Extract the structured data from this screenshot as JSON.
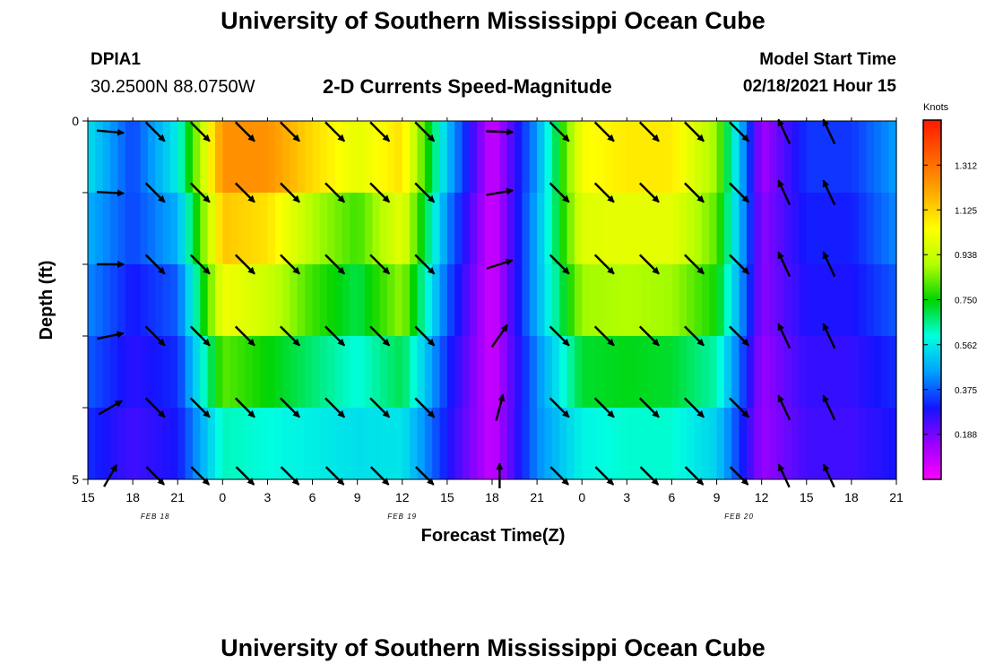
{
  "header": {
    "title": "University of Southern Mississippi Ocean Cube",
    "station_id": "DPIA1",
    "coordinates": "30.2500N 88.0750W",
    "subtitle": "2-D Currents Speed-Magnitude",
    "model_start_label": "Model Start Time",
    "model_start_value": "02/18/2021 Hour 15"
  },
  "footer": {
    "title": "University of Southern Mississippi Ocean Cube"
  },
  "chart_data": {
    "type": "heatmap",
    "title": "2-D Currents Speed-Magnitude",
    "xlabel": "Forecast Time(Z)",
    "ylabel": "Depth (ft)",
    "x_range_hours": [
      0,
      54
    ],
    "y_range_ft": [
      0,
      5
    ],
    "y_tick_labels": [
      {
        "depth": 0,
        "label": "0"
      },
      {
        "depth": 5,
        "label": "5"
      }
    ],
    "y_minor_ticks": [
      1,
      2,
      3,
      4
    ],
    "x_ticks": [
      {
        "hour": 0,
        "label": "15"
      },
      {
        "hour": 3,
        "label": "18"
      },
      {
        "hour": 6,
        "label": "21"
      },
      {
        "hour": 9,
        "label": "0"
      },
      {
        "hour": 12,
        "label": "3"
      },
      {
        "hour": 15,
        "label": "6"
      },
      {
        "hour": 18,
        "label": "9"
      },
      {
        "hour": 21,
        "label": "12"
      },
      {
        "hour": 24,
        "label": "15"
      },
      {
        "hour": 27,
        "label": "18"
      },
      {
        "hour": 30,
        "label": "21"
      },
      {
        "hour": 33,
        "label": "0"
      },
      {
        "hour": 36,
        "label": "3"
      },
      {
        "hour": 39,
        "label": "6"
      },
      {
        "hour": 42,
        "label": "9"
      },
      {
        "hour": 45,
        "label": "12"
      },
      {
        "hour": 48,
        "label": "15"
      },
      {
        "hour": 51,
        "label": "18"
      },
      {
        "hour": 54,
        "label": "21"
      }
    ],
    "date_labels": [
      {
        "hour": 4.5,
        "label": "FEB 18"
      },
      {
        "hour": 21,
        "label": "FEB 19"
      },
      {
        "hour": 43.5,
        "label": "FEB 20"
      }
    ],
    "depth_layers": 5,
    "hours_sampled": [
      0,
      3,
      6,
      9,
      12,
      15,
      18,
      21,
      24,
      27,
      30,
      33,
      36,
      39,
      42,
      45,
      48,
      51,
      54
    ],
    "speed_knots": [
      [
        0.6,
        0.3,
        0.6,
        1.3,
        1.35,
        1.28,
        1.15,
        1.15,
        0.55,
        0.08,
        0.45,
        1.05,
        1.12,
        1.12,
        0.9,
        0.12,
        0.35,
        0.35,
        0.45
      ],
      [
        0.5,
        0.4,
        0.55,
        1.2,
        1.15,
        0.95,
        0.85,
        1.05,
        0.45,
        0.06,
        0.45,
        1.02,
        1.05,
        1.05,
        0.85,
        0.15,
        0.32,
        0.32,
        0.45
      ],
      [
        0.45,
        0.3,
        0.4,
        1.1,
        1.05,
        0.85,
        0.75,
        0.95,
        0.4,
        0.06,
        0.5,
        0.95,
        0.95,
        0.95,
        0.8,
        0.18,
        0.3,
        0.3,
        0.4
      ],
      [
        0.4,
        0.3,
        0.35,
        0.95,
        0.85,
        0.75,
        0.65,
        0.8,
        0.35,
        0.06,
        0.45,
        0.82,
        0.85,
        0.82,
        0.72,
        0.15,
        0.28,
        0.28,
        0.35
      ],
      [
        0.35,
        0.25,
        0.3,
        0.7,
        0.65,
        0.6,
        0.55,
        0.6,
        0.3,
        0.08,
        0.4,
        0.62,
        0.62,
        0.62,
        0.55,
        0.15,
        0.25,
        0.25,
        0.3
      ],
      [
        0.3,
        0.25,
        0.3,
        0.55,
        0.55,
        0.55,
        0.55,
        0.52,
        0.3,
        0.08,
        0.45,
        0.55,
        0.6,
        0.6,
        0.5,
        0.15,
        0.25,
        0.25,
        0.3
      ]
    ],
    "vector_columns_hours": [
      1.5,
      4.5,
      7.5,
      10.5,
      13.5,
      16.5,
      19.5,
      22.5,
      27.5,
      31.5,
      34.5,
      37.5,
      40.5,
      43.5,
      46.5,
      49.5
    ],
    "vector_column_directions_deg": [
      100,
      135,
      135,
      135,
      135,
      135,
      135,
      135,
      85,
      135,
      135,
      135,
      135,
      135,
      335,
      335
    ],
    "vector_first_column_directions_deg": [
      95,
      93,
      90,
      78,
      60,
      30
    ],
    "vector_col9_directions_deg": [
      92,
      80,
      72,
      35,
      15,
      0
    ],
    "colorbar": {
      "units": "Knots",
      "min": 0,
      "max": 1.5,
      "tick_values": [
        0.188,
        0.375,
        0.562,
        0.75,
        0.938,
        1.125,
        1.312
      ],
      "tick_labels": [
        "0.188",
        "0.375",
        "0.562",
        "0.750",
        "0.938",
        "1.125",
        "1.312"
      ],
      "colors": [
        "#ff00ff",
        "#9b00ff",
        "#1414ff",
        "#00a0ff",
        "#00ffe0",
        "#00d400",
        "#b4ff00",
        "#ffff00",
        "#ffaa00",
        "#ff6000",
        "#ff1a00"
      ]
    }
  }
}
